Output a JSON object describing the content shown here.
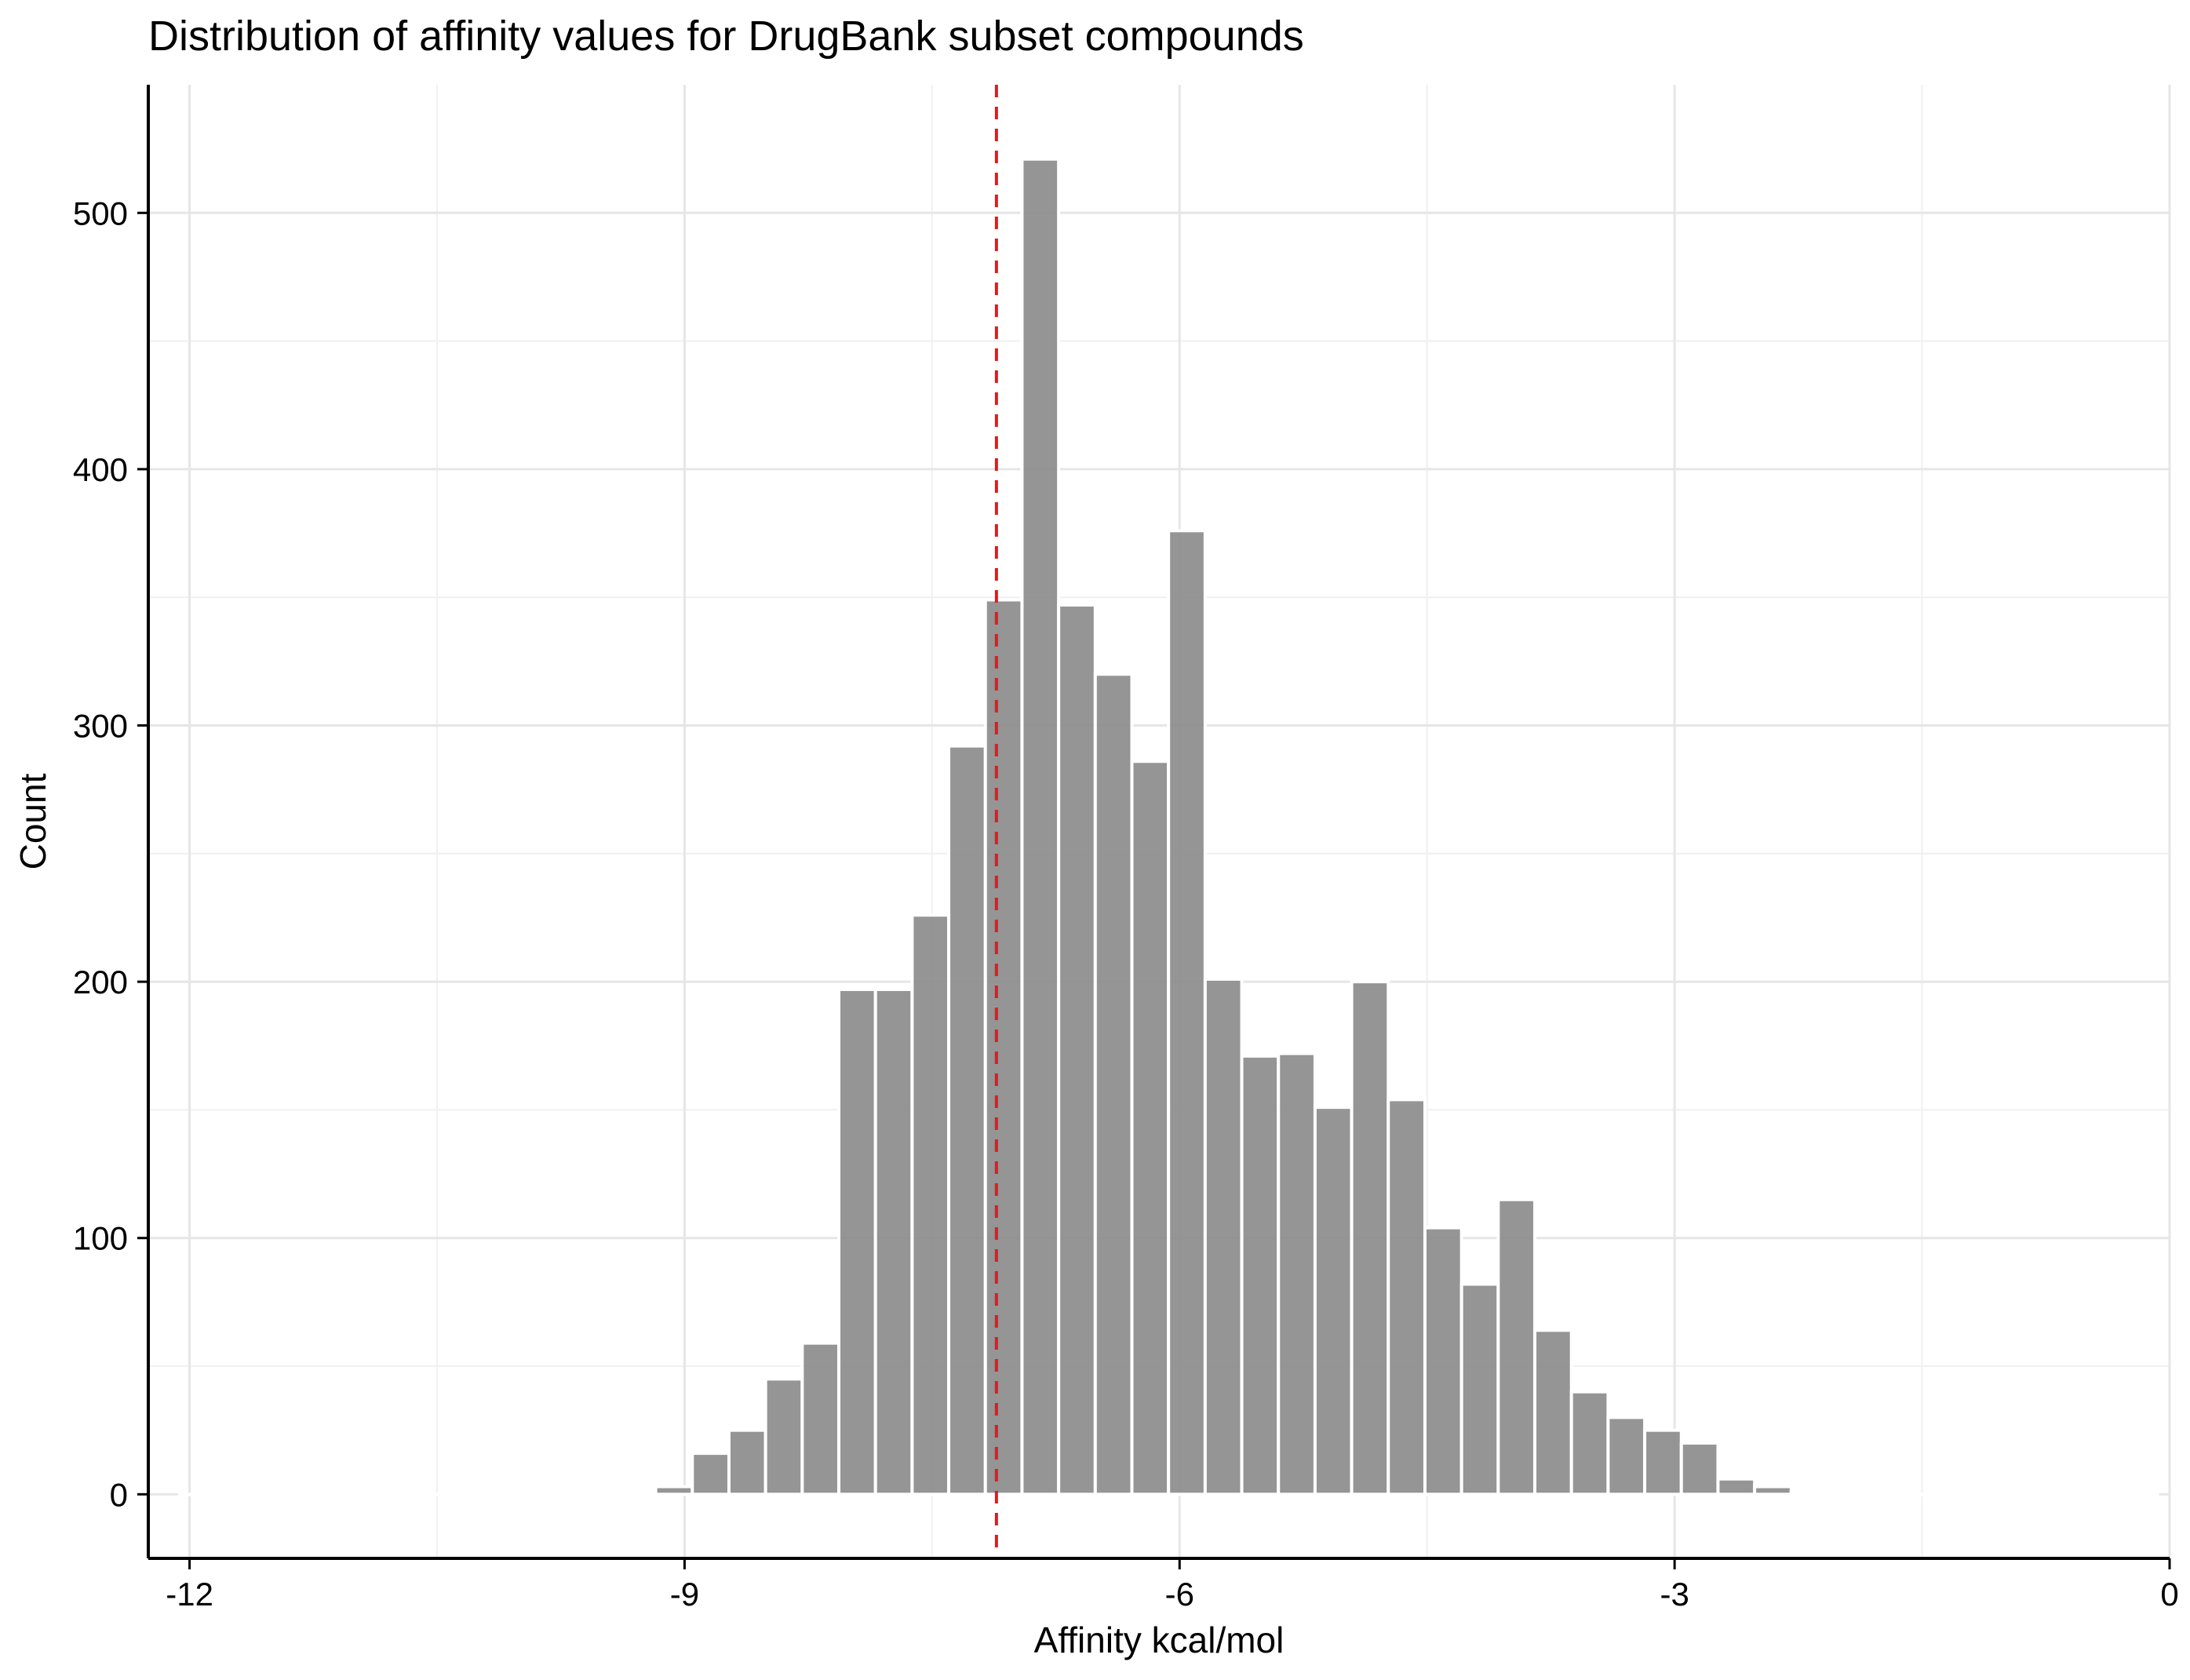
{
  "chart_data": {
    "type": "bar",
    "title": "Distribution of affinity values for DrugBank subset compounds",
    "xlabel": "Affinity kcal/mol",
    "ylabel": "Count",
    "xlim": [
      -12.25,
      0.0
    ],
    "ylim": [
      -25,
      550
    ],
    "x_ticks": [
      -12,
      -9,
      -6,
      -3,
      0
    ],
    "x_tick_labels": [
      "-12",
      "-9",
      "-6",
      "-3",
      "0"
    ],
    "y_ticks": [
      0,
      100,
      200,
      300,
      400,
      500
    ],
    "y_tick_labels": [
      "0",
      "100",
      "200",
      "300",
      "400",
      "500"
    ],
    "grid": true,
    "bin_width": 0.222,
    "bin_centers": [
      -11.95,
      -11.728,
      -11.506,
      -11.284,
      -11.062,
      -10.84,
      -10.618,
      -10.396,
      -10.174,
      -9.952,
      -9.73,
      -9.508,
      -9.286,
      -9.064,
      -8.842,
      -8.62,
      -8.398,
      -8.176,
      -7.954,
      -7.732,
      -7.51,
      -7.288,
      -7.066,
      -6.844,
      -6.622,
      -6.4,
      -6.178,
      -5.956,
      -5.734,
      -5.512,
      -5.29,
      -5.068,
      -4.846,
      -4.624,
      -4.402,
      -4.18,
      -3.958,
      -3.736,
      -3.514,
      -3.292,
      -3.07,
      -2.848,
      -2.626,
      -2.404,
      -2.182,
      -1.96,
      -1.738,
      -1.516,
      -1.294,
      -1.072,
      -0.85,
      -0.628,
      -0.406,
      -0.184
    ],
    "values": [
      0,
      0,
      0,
      0,
      0,
      0,
      0,
      0,
      0,
      0,
      0,
      0,
      1,
      3,
      16,
      25,
      45,
      59,
      197,
      197,
      226,
      292,
      349,
      521,
      347,
      320,
      286,
      376,
      201,
      171,
      172,
      151,
      200,
      154,
      104,
      82,
      115,
      64,
      40,
      30,
      25,
      20,
      6,
      3,
      1,
      0,
      0,
      0,
      0,
      0,
      1,
      0,
      0,
      0
    ],
    "reference_line": {
      "x": -7.11,
      "style": "dashed",
      "color": "#e41a1c"
    },
    "bar_color": "#8c8c8c",
    "bar_opacity": 0.92
  }
}
